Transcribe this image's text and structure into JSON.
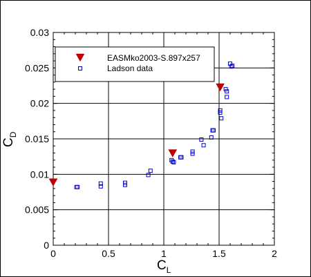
{
  "chart_data": {
    "type": "scatter",
    "xlabel": {
      "main": "C",
      "sub": "L"
    },
    "ylabel": {
      "main": "C",
      "sub": "D"
    },
    "xlim": [
      0,
      2
    ],
    "ylim": [
      0,
      0.03
    ],
    "x_ticks": [
      "0",
      "0.5",
      "1",
      "1.5",
      "2"
    ],
    "y_ticks": [
      "0",
      "0.005",
      "0.01",
      "0.015",
      "0.02",
      "0.025",
      "0.03"
    ],
    "grid": true,
    "legend_position": "top-left",
    "series": [
      {
        "name": "EASMko2003-S.897x257",
        "marker": "filled-triangle-down",
        "color": "#c00000",
        "points": [
          [
            0.0,
            0.0088
          ],
          [
            1.08,
            0.0129
          ],
          [
            1.51,
            0.0222
          ]
        ]
      },
      {
        "name": "Ladson data",
        "marker": "open-square",
        "color": "#0000cc",
        "points": [
          [
            0.21,
            0.0082
          ],
          [
            0.22,
            0.0082
          ],
          [
            0.43,
            0.0083
          ],
          [
            0.43,
            0.0087
          ],
          [
            0.65,
            0.0085
          ],
          [
            0.65,
            0.0088
          ],
          [
            0.86,
            0.0099
          ],
          [
            0.88,
            0.0105
          ],
          [
            1.07,
            0.012
          ],
          [
            1.08,
            0.0118
          ],
          [
            1.09,
            0.0117
          ],
          [
            1.15,
            0.0124
          ],
          [
            1.16,
            0.0124
          ],
          [
            1.26,
            0.0129
          ],
          [
            1.26,
            0.0132
          ],
          [
            1.34,
            0.0149
          ],
          [
            1.36,
            0.0141
          ],
          [
            1.43,
            0.0152
          ],
          [
            1.44,
            0.0162
          ],
          [
            1.45,
            0.0162
          ],
          [
            1.51,
            0.0187
          ],
          [
            1.51,
            0.019
          ],
          [
            1.52,
            0.0179
          ],
          [
            1.56,
            0.022
          ],
          [
            1.57,
            0.0217
          ],
          [
            1.57,
            0.0209
          ],
          [
            1.6,
            0.0256
          ],
          [
            1.61,
            0.0252
          ],
          [
            1.62,
            0.0253
          ]
        ]
      }
    ]
  }
}
